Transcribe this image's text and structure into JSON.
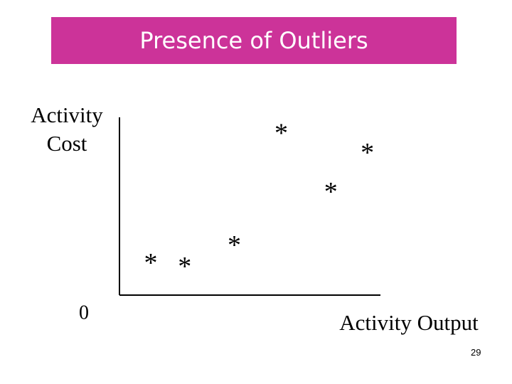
{
  "chart_data": {
    "type": "scatter",
    "title": "Presence of Outliers",
    "y_label": "Activity Cost",
    "x_label": "Activity Output",
    "x": [
      12,
      25,
      44,
      62,
      81,
      95
    ],
    "values": [
      18,
      16,
      28,
      91,
      58,
      80
    ],
    "marker": "*",
    "color": "#000000",
    "xlim": [
      0,
      100
    ],
    "ylim": [
      0,
      100
    ],
    "xticks": [
      0
    ],
    "grid": false
  },
  "page_number": "29"
}
